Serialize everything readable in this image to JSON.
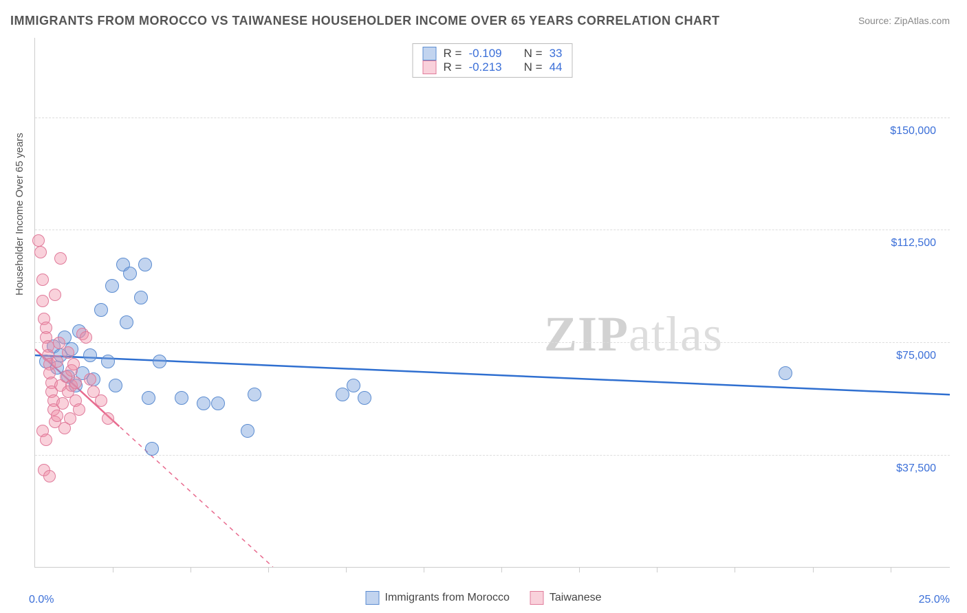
{
  "title": "IMMIGRANTS FROM MOROCCO VS TAIWANESE HOUSEHOLDER INCOME OVER 65 YEARS CORRELATION CHART",
  "source": "Source: ZipAtlas.com",
  "ylabel": "Householder Income Over 65 years",
  "watermark_a": "ZIP",
  "watermark_b": "atlas",
  "chart": {
    "type": "scatter",
    "background_color": "#ffffff",
    "grid_color": "#dddddd",
    "axis_color": "#cccccc",
    "xlim": [
      0,
      25
    ],
    "ylim": [
      0,
      175000
    ],
    "x_unit": "%",
    "x_min_label": "0.0%",
    "x_max_label": "25.0%",
    "x_tick_positions_pct": [
      8.5,
      17,
      25.5,
      34,
      42.5,
      51,
      59.5,
      68,
      76.5,
      85,
      93.5
    ],
    "y_gridlines": [
      {
        "value": 37500,
        "label": "$37,500",
        "top_pct": 78.8
      },
      {
        "value": 75000,
        "label": "$75,000",
        "top_pct": 57.5
      },
      {
        "value": 112500,
        "label": "$112,500",
        "top_pct": 36.2
      },
      {
        "value": 150000,
        "label": "$150,000",
        "top_pct": 15.0
      }
    ],
    "series": [
      {
        "name": "Immigrants from Morocco",
        "css_class": "pt-blue",
        "marker_color": "#78a0dc",
        "marker_border": "#5a8bd0",
        "trend_color": "#2f6fd0",
        "trend_dash": "none",
        "R": "-0.109",
        "N": "33",
        "trend_line": {
          "x1": 0,
          "y1": 70000,
          "x2": 25,
          "y2": 57000
        },
        "points": [
          {
            "x": 0.3,
            "y": 68000
          },
          {
            "x": 0.5,
            "y": 73000
          },
          {
            "x": 0.6,
            "y": 66000
          },
          {
            "x": 0.7,
            "y": 70000
          },
          {
            "x": 0.8,
            "y": 76000
          },
          {
            "x": 0.9,
            "y": 63000
          },
          {
            "x": 1.0,
            "y": 72000
          },
          {
            "x": 1.1,
            "y": 60000
          },
          {
            "x": 1.2,
            "y": 78000
          },
          {
            "x": 1.3,
            "y": 64000
          },
          {
            "x": 1.5,
            "y": 70000
          },
          {
            "x": 1.6,
            "y": 62000
          },
          {
            "x": 1.8,
            "y": 85000
          },
          {
            "x": 2.0,
            "y": 68000
          },
          {
            "x": 2.1,
            "y": 93000
          },
          {
            "x": 2.2,
            "y": 60000
          },
          {
            "x": 2.4,
            "y": 100000
          },
          {
            "x": 2.5,
            "y": 81000
          },
          {
            "x": 2.6,
            "y": 97000
          },
          {
            "x": 2.9,
            "y": 89000
          },
          {
            "x": 3.0,
            "y": 100000
          },
          {
            "x": 3.1,
            "y": 56000
          },
          {
            "x": 3.2,
            "y": 39000
          },
          {
            "x": 3.4,
            "y": 68000
          },
          {
            "x": 4.0,
            "y": 56000
          },
          {
            "x": 4.6,
            "y": 54000
          },
          {
            "x": 5.0,
            "y": 54000
          },
          {
            "x": 5.8,
            "y": 45000
          },
          {
            "x": 6.0,
            "y": 57000
          },
          {
            "x": 8.4,
            "y": 57000
          },
          {
            "x": 8.7,
            "y": 60000
          },
          {
            "x": 9.0,
            "y": 56000
          },
          {
            "x": 20.5,
            "y": 64000
          }
        ]
      },
      {
        "name": "Taiwanese",
        "css_class": "pt-pink",
        "marker_color": "#f08ca5",
        "marker_border": "#e07a9a",
        "trend_color": "#e86a8e",
        "trend_dash": "6,6",
        "R": "-0.213",
        "N": "44",
        "trend_line": {
          "x1": 0,
          "y1": 72000,
          "x2": 6.5,
          "y2": 0
        },
        "points": [
          {
            "x": 0.1,
            "y": 108000
          },
          {
            "x": 0.15,
            "y": 104000
          },
          {
            "x": 0.2,
            "y": 95000
          },
          {
            "x": 0.2,
            "y": 88000
          },
          {
            "x": 0.25,
            "y": 82000
          },
          {
            "x": 0.3,
            "y": 79000
          },
          {
            "x": 0.3,
            "y": 76000
          },
          {
            "x": 0.35,
            "y": 73000
          },
          {
            "x": 0.35,
            "y": 70000
          },
          {
            "x": 0.4,
            "y": 67000
          },
          {
            "x": 0.4,
            "y": 64000
          },
          {
            "x": 0.45,
            "y": 61000
          },
          {
            "x": 0.45,
            "y": 58000
          },
          {
            "x": 0.5,
            "y": 55000
          },
          {
            "x": 0.5,
            "y": 52000
          },
          {
            "x": 0.55,
            "y": 48000
          },
          {
            "x": 0.2,
            "y": 45000
          },
          {
            "x": 0.6,
            "y": 50000
          },
          {
            "x": 0.6,
            "y": 68000
          },
          {
            "x": 0.65,
            "y": 74000
          },
          {
            "x": 0.7,
            "y": 102000
          },
          {
            "x": 0.7,
            "y": 60000
          },
          {
            "x": 0.75,
            "y": 54000
          },
          {
            "x": 0.8,
            "y": 46000
          },
          {
            "x": 0.3,
            "y": 42000
          },
          {
            "x": 0.85,
            "y": 63000
          },
          {
            "x": 0.9,
            "y": 71000
          },
          {
            "x": 0.9,
            "y": 58000
          },
          {
            "x": 0.95,
            "y": 49000
          },
          {
            "x": 1.0,
            "y": 65000
          },
          {
            "x": 1.0,
            "y": 60000
          },
          {
            "x": 1.05,
            "y": 67000
          },
          {
            "x": 1.1,
            "y": 55000
          },
          {
            "x": 1.1,
            "y": 61000
          },
          {
            "x": 1.2,
            "y": 52000
          },
          {
            "x": 1.3,
            "y": 77000
          },
          {
            "x": 1.4,
            "y": 76000
          },
          {
            "x": 1.5,
            "y": 62000
          },
          {
            "x": 1.6,
            "y": 58000
          },
          {
            "x": 1.8,
            "y": 55000
          },
          {
            "x": 2.0,
            "y": 49000
          },
          {
            "x": 0.25,
            "y": 32000
          },
          {
            "x": 0.4,
            "y": 30000
          },
          {
            "x": 0.55,
            "y": 90000
          }
        ]
      }
    ]
  },
  "stats_box": {
    "r_label": "R =",
    "n_label": "N ="
  }
}
